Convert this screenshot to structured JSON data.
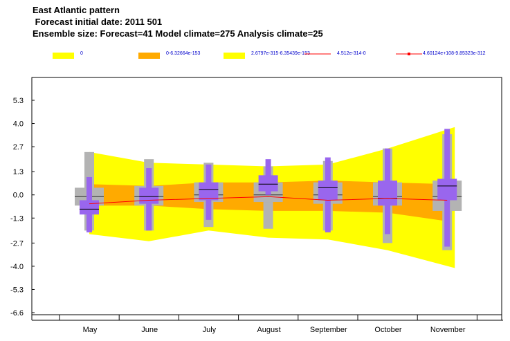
{
  "header": {
    "title": "East Atlantic pattern",
    "line2": " Forecast initial date: 2011 501",
    "line3": "Ensemble size: Forecast=41 Model climate=275 Analysis climate=25"
  },
  "legend": [
    {
      "label": "0",
      "color": "#ffff00",
      "kind": "swatch"
    },
    {
      "label": "0-6.32664e-153",
      "color": "#ffaa00",
      "kind": "swatch"
    },
    {
      "label": "2.6797e-315-6.35439e-153",
      "color": "#ffff00",
      "kind": "swatch"
    },
    {
      "label": "4.512e-314-0",
      "color": "#ff0000",
      "kind": "line"
    },
    {
      "label": "4.60124e+108-9.85323e-312",
      "color": "#ff0000",
      "kind": "line-marker"
    }
  ],
  "colors": {
    "outer_band": "#ffff00",
    "inner_band": "#ffaa00",
    "median_line": "#ff0000",
    "climate_box": "#b3b3b3",
    "forecast_box": "#9966ee"
  },
  "chart_data": {
    "type": "box",
    "categories": [
      "May",
      "June",
      "July",
      "August",
      "September",
      "October",
      "November"
    ],
    "yticks": [
      5.3,
      4.0,
      2.7,
      1.3,
      0.0,
      -1.3,
      -2.7,
      -4.0,
      -5.3,
      -6.6
    ],
    "ytick_labels": [
      "5.3",
      "4.0",
      "2.7",
      "1.3",
      "0.0",
      "-1.3",
      "-2.7",
      "-4.0",
      "-5.3",
      "-6.6"
    ],
    "ylim": [
      -6.6,
      6.6
    ],
    "outer_band": {
      "upper": [
        2.4,
        1.8,
        1.7,
        1.6,
        1.7,
        2.6,
        3.8
      ],
      "lower": [
        -2.2,
        -2.6,
        -2.0,
        -2.4,
        -2.5,
        -3.1,
        -4.1
      ]
    },
    "inner_band": {
      "upper": [
        0.6,
        0.5,
        0.7,
        0.7,
        0.8,
        0.7,
        0.6
      ],
      "lower": [
        -0.6,
        -0.6,
        -0.8,
        -0.9,
        -0.9,
        -1.0,
        -1.5
      ]
    },
    "median_line": [
      -0.5,
      -0.3,
      -0.2,
      -0.1,
      -0.3,
      -0.2,
      -0.3
    ],
    "model_climate": [
      {
        "min": -2.0,
        "q1": -0.6,
        "median": -0.1,
        "q3": 0.4,
        "max": 2.4
      },
      {
        "min": -2.0,
        "q1": -0.6,
        "median": -0.1,
        "q3": 0.5,
        "max": 2.0
      },
      {
        "min": -1.8,
        "q1": -0.4,
        "median": 0.0,
        "q3": 0.7,
        "max": 1.8
      },
      {
        "min": -1.9,
        "q1": -0.4,
        "median": 0.0,
        "q3": 0.7,
        "max": 1.6
      },
      {
        "min": -2.0,
        "q1": -0.5,
        "median": 0.0,
        "q3": 0.7,
        "max": 1.9
      },
      {
        "min": -2.7,
        "q1": -0.6,
        "median": -0.1,
        "q3": 0.7,
        "max": 2.6
      },
      {
        "min": -3.1,
        "q1": -0.9,
        "median": -0.1,
        "q3": 0.8,
        "max": 3.4
      }
    ],
    "forecast": [
      {
        "min": -2.1,
        "q1": -1.1,
        "median": -0.8,
        "q3": -0.3,
        "max": 1.0
      },
      {
        "min": -2.0,
        "q1": -0.5,
        "median": -0.1,
        "q3": 0.4,
        "max": 1.5
      },
      {
        "min": -1.4,
        "q1": -0.3,
        "median": 0.3,
        "q3": 0.7,
        "max": 1.7
      },
      {
        "min": 0.0,
        "q1": 0.2,
        "median": 0.6,
        "q3": 1.1,
        "max": 2.0
      },
      {
        "min": -2.1,
        "q1": -0.3,
        "median": 0.4,
        "q3": 0.8,
        "max": 2.1
      },
      {
        "min": -2.2,
        "q1": -0.6,
        "median": -0.2,
        "q3": 0.8,
        "max": 2.6
      },
      {
        "min": -2.9,
        "q1": -0.3,
        "median": 0.5,
        "q3": 0.9,
        "max": 3.7
      }
    ]
  }
}
